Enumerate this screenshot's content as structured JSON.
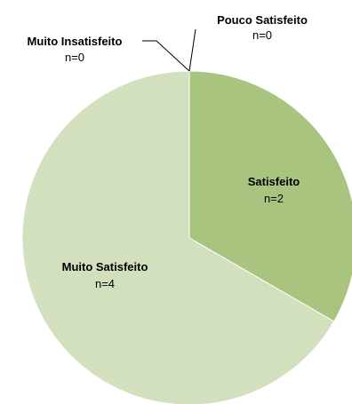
{
  "chart_data": {
    "type": "pie",
    "title": "",
    "slices": [
      {
        "name": "Pouco Satisfeito",
        "count_label": "n=0",
        "value": 0,
        "color": "#9bbb59"
      },
      {
        "name": "Satisfeito",
        "count_label": "n=2",
        "value": 2,
        "color": "#a9c47f"
      },
      {
        "name": "Muito Satisfeito",
        "count_label": "n=4",
        "value": 4,
        "color": "#d3e0bd"
      },
      {
        "name": "Muito Insatisfeito",
        "count_label": "n=0",
        "value": 0,
        "color": "#ebf1de"
      }
    ],
    "legend": "none",
    "labels": "on-chart with leader lines for zero-valued slices"
  }
}
